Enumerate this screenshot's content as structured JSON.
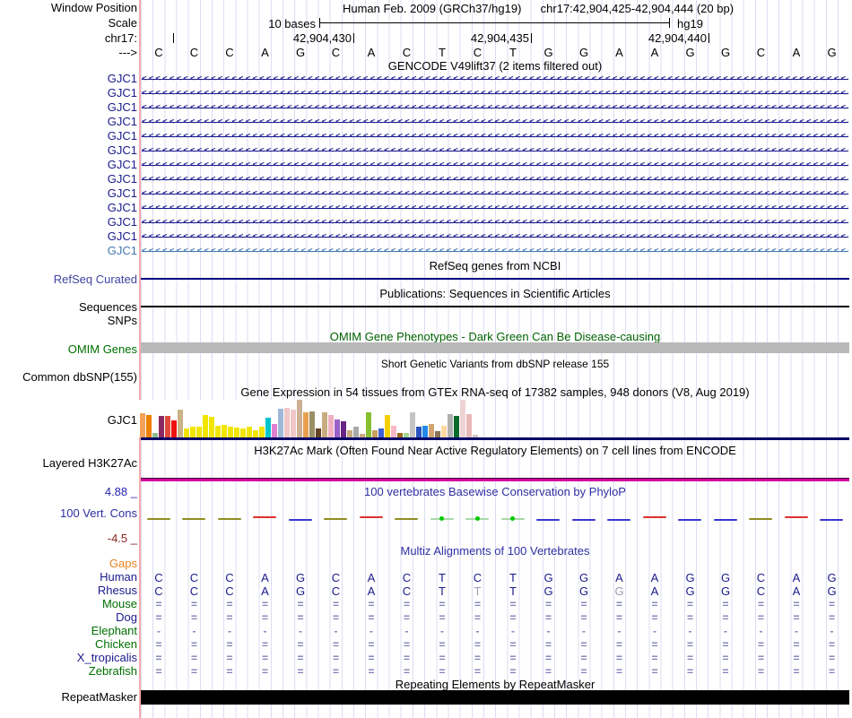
{
  "header": {
    "assembly": "Human Feb. 2009 (GRCh37/hg19)",
    "position": "chr17:42,904,425-42,904,444 (20 bp)"
  },
  "left_labels": {
    "window_position": "Window Position",
    "scale": "Scale",
    "chromosome": "chr17:",
    "strand": "--->"
  },
  "ruler": {
    "scale_text": "10 bases",
    "genome": "hg19",
    "tick_labels": [
      "42,904,430",
      "42,904,435",
      "42,904,440"
    ]
  },
  "sequence": {
    "bases": [
      "C",
      "C",
      "C",
      "A",
      "G",
      "C",
      "A",
      "C",
      "T",
      "C",
      "T",
      "G",
      "G",
      "A",
      "A",
      "G",
      "G",
      "C",
      "A",
      "G"
    ]
  },
  "gencode": {
    "title": "GENCODE V49lift37 (2 items filtered out)",
    "rows": [
      {
        "label": "GJC1",
        "color": "#1a1a8c"
      },
      {
        "label": "GJC1",
        "color": "#1a1a8c"
      },
      {
        "label": "GJC1",
        "color": "#1a1a8c"
      },
      {
        "label": "GJC1",
        "color": "#1a1a8c"
      },
      {
        "label": "GJC1",
        "color": "#1a1a8c"
      },
      {
        "label": "GJC1",
        "color": "#1a1a8c"
      },
      {
        "label": "GJC1",
        "color": "#1a1a8c"
      },
      {
        "label": "GJC1",
        "color": "#1a1a8c"
      },
      {
        "label": "GJC1",
        "color": "#1a1a8c"
      },
      {
        "label": "GJC1",
        "color": "#1a1a8c"
      },
      {
        "label": "GJC1",
        "color": "#1a1a8c"
      },
      {
        "label": "GJC1",
        "color": "#1a1a8c"
      },
      {
        "label": "GJC1",
        "color": "#4579b2"
      }
    ]
  },
  "refseq": {
    "title": "RefSeq genes from NCBI",
    "label": "RefSeq Curated"
  },
  "publications": {
    "title": "Publications: Sequences in Scientific Articles",
    "label_sequences": "Sequences",
    "label_snps": "SNPs"
  },
  "omim": {
    "title": "OMIM Gene Phenotypes - Dark Green Can Be Disease-causing",
    "label": "OMIM Genes"
  },
  "dbsnp": {
    "title": "Short Genetic Variants from dbSNP release 155",
    "label": "Common dbSNP(155)"
  },
  "gtex": {
    "title": "Gene Expression in 54 tissues from GTEx RNA-seq of 17382 samples, 948 donors (V8, Aug 2019)",
    "label": "GJC1",
    "bars": [
      [
        "#f5a15a",
        27
      ],
      [
        "#f08000",
        25
      ],
      [
        "#8fbc8f",
        5
      ],
      [
        "#8b2a62",
        24
      ],
      [
        "#e04a3a",
        24
      ],
      [
        "#f01010",
        19
      ],
      [
        "#cbb286",
        31
      ],
      [
        "#f2e600",
        10
      ],
      [
        "#f2e600",
        12
      ],
      [
        "#f2e600",
        12
      ],
      [
        "#f2e600",
        25
      ],
      [
        "#f2e600",
        23
      ],
      [
        "#f2e600",
        13
      ],
      [
        "#f2e600",
        14
      ],
      [
        "#f2e600",
        12
      ],
      [
        "#f2e600",
        11
      ],
      [
        "#f2e600",
        10
      ],
      [
        "#f2e600",
        12
      ],
      [
        "#f2e600",
        8
      ],
      [
        "#f2e600",
        12
      ],
      [
        "#00c5cd",
        22
      ],
      [
        "#e07fd0",
        15
      ],
      [
        "#9fb8d8",
        32
      ],
      [
        "#efc7c7",
        33
      ],
      [
        "#efc7c7",
        31
      ],
      [
        "#cdaf95",
        42
      ],
      [
        "#e8a04e",
        28
      ],
      [
        "#9b8f66",
        29
      ],
      [
        "#654321",
        10
      ],
      [
        "#c8ab7e",
        28
      ],
      [
        "#f0b0c0",
        25
      ],
      [
        "#9a5fc8",
        20
      ],
      [
        "#662483",
        18
      ],
      [
        "#c8ab7e",
        8
      ],
      [
        "#a9a9a9",
        12
      ],
      [
        "#c8ab7e",
        4
      ],
      [
        "#86bf30",
        28
      ],
      [
        "#c8a060",
        8
      ],
      [
        "#4060d0",
        10
      ],
      [
        "#f5d000",
        25
      ],
      [
        "#f8b8c8",
        13
      ],
      [
        "#9c6a1a",
        5
      ],
      [
        "#a0d890",
        5
      ],
      [
        "#c4c4c4",
        28
      ],
      [
        "#2a52be",
        12
      ],
      [
        "#2288e8",
        13
      ],
      [
        "#d2a56e",
        15
      ],
      [
        "#8b7355",
        7
      ],
      [
        "#ffd9a0",
        13
      ],
      [
        "#b0b0b0",
        26
      ],
      [
        "#0a6b2a",
        24
      ],
      [
        "#efd3d3",
        42
      ],
      [
        "#e9b8b8",
        26
      ],
      [
        "#d8c8c8",
        3
      ]
    ]
  },
  "h3k27ac": {
    "title": "H3K27Ac Mark (Often Found Near Active Regulatory Elements) on 7 cell lines from ENCODE",
    "label": "Layered H3K27Ac"
  },
  "phylop": {
    "title": "100 vertebrates Basewise Conservation by PhyloP",
    "label": "100 Vert. Cons",
    "axis_max": "4.88 _",
    "axis_min": "-4.5 _",
    "marks": [
      "olive",
      "olive",
      "olive",
      "red",
      "blue",
      "olive",
      "red",
      "olive",
      "green",
      "green",
      "green",
      "blue",
      "blue",
      "blue",
      "red",
      "blue",
      "blue",
      "olive",
      "red",
      "blue"
    ]
  },
  "multiz": {
    "title": "Multiz Alignments of 100 Vertebrates",
    "rows": [
      {
        "label": "Gaps",
        "label_color": "#e8821e",
        "cell_color": "#8080b8",
        "cells": []
      },
      {
        "label": "Human",
        "label_color": "#1a1a8c",
        "cell_color": "#1a1a8c",
        "letters": true,
        "cells": [
          "C",
          "C",
          "C",
          "A",
          "G",
          "C",
          "A",
          "C",
          "T",
          "C",
          "T",
          "G",
          "G",
          "A",
          "A",
          "G",
          "G",
          "C",
          "A",
          "G"
        ]
      },
      {
        "label": "Rhesus",
        "label_color": "#1a1a8c",
        "cell_color": "#1a1a8c",
        "letters": true,
        "muted": [
          9,
          13
        ],
        "cells": [
          "C",
          "C",
          "C",
          "A",
          "G",
          "C",
          "A",
          "C",
          "T",
          "T",
          "T",
          "G",
          "G",
          "G",
          "A",
          "G",
          "G",
          "C",
          "A",
          "G"
        ]
      },
      {
        "label": "Mouse",
        "label_color": "#007000",
        "cell_color": "#8080b8",
        "cells": [
          "=",
          "=",
          "=",
          "=",
          "=",
          "=",
          "=",
          "=",
          "=",
          "=",
          "=",
          "=",
          "=",
          "=",
          "=",
          "=",
          "=",
          "=",
          "=",
          "="
        ]
      },
      {
        "label": "Dog",
        "label_color": "#1a1a8c",
        "cell_color": "#8080b8",
        "cells": [
          "=",
          "=",
          "=",
          "=",
          "=",
          "=",
          "=",
          "=",
          "=",
          "=",
          "=",
          "=",
          "=",
          "=",
          "=",
          "=",
          "=",
          "=",
          "=",
          "="
        ]
      },
      {
        "label": "Elephant",
        "label_color": "#007000",
        "cell_color": "#8080b8",
        "cells": [
          "-",
          "-",
          "-",
          "-",
          "-",
          "-",
          "-",
          "-",
          "-",
          "-",
          "-",
          "-",
          "-",
          "-",
          "-",
          "-",
          "-",
          "-",
          "-",
          "-"
        ]
      },
      {
        "label": "Chicken",
        "label_color": "#007000",
        "cell_color": "#8080b8",
        "cells": [
          "=",
          "=",
          "=",
          "=",
          "=",
          "=",
          "=",
          "=",
          "=",
          "=",
          "=",
          "=",
          "=",
          "=",
          "=",
          "=",
          "=",
          "=",
          "=",
          "="
        ]
      },
      {
        "label": "X_tropicalis",
        "label_color": "#1a1a8c",
        "cell_color": "#8080b8",
        "cells": [
          "=",
          "=",
          "=",
          "=",
          "=",
          "=",
          "=",
          "=",
          "=",
          "=",
          "=",
          "=",
          "=",
          "=",
          "=",
          "=",
          "=",
          "=",
          "=",
          "="
        ]
      },
      {
        "label": "Zebrafish",
        "label_color": "#007000",
        "cell_color": "#8080b8",
        "cells": [
          "=",
          "=",
          "=",
          "=",
          "=",
          "=",
          "=",
          "=",
          "=",
          "=",
          "=",
          "=",
          "=",
          "=",
          "=",
          "=",
          "=",
          "=",
          "=",
          "="
        ]
      }
    ]
  },
  "repeatmasker": {
    "title": "Repeating Elements by RepeatMasker",
    "label": "RepeatMasker"
  },
  "colors": {
    "track_navy": "#000082",
    "gencode_alt_blue": "#4579b2",
    "grid_line": "#dcdcf2",
    "cursor_red": "#f6abab",
    "omim_bar_gray": "#b9b9b9",
    "gtex_baseline_navy": "#000066",
    "h3k27ac_magenta": "#d400a0",
    "phylop_olive": "#8f8f1f",
    "phylop_red": "#e03030",
    "phylop_blue": "#3838d0",
    "phylop_green": "#00c800",
    "muted_letter_gray": "#9a9ab4",
    "repeat_black": "#000000"
  }
}
